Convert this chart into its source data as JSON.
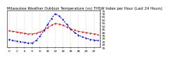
{
  "title": "Milwaukee Weather Outdoor Temperature (vs) THSW Index per Hour (Last 24 Hours)",
  "hours": [
    0,
    1,
    2,
    3,
    4,
    5,
    6,
    7,
    8,
    9,
    10,
    11,
    12,
    13,
    14,
    15,
    16,
    17,
    18,
    19,
    20,
    21,
    22,
    23
  ],
  "temp": [
    42,
    41,
    40,
    39,
    38,
    37,
    37,
    38,
    40,
    43,
    47,
    51,
    54,
    53,
    51,
    48,
    45,
    43,
    41,
    40,
    39,
    38,
    37,
    36
  ],
  "thsw": [
    28,
    26,
    25,
    24,
    23,
    22,
    22,
    26,
    33,
    42,
    52,
    62,
    70,
    66,
    60,
    52,
    45,
    39,
    35,
    32,
    30,
    28,
    27,
    26
  ],
  "temp_color": "#cc0000",
  "thsw_color": "#0000cc",
  "bg_color": "#ffffff",
  "grid_color": "#888888",
  "ylim_min": 15,
  "ylim_max": 75,
  "ytick_labels": [
    "75",
    "70",
    "65",
    "60",
    "55",
    "50",
    "45",
    "40",
    "35",
    "30",
    "25",
    "20",
    "15"
  ],
  "ytick_values": [
    75,
    70,
    65,
    60,
    55,
    50,
    45,
    40,
    35,
    30,
    25,
    20,
    15
  ],
  "title_fontsize": 3.8,
  "tick_fontsize": 3.2,
  "linewidth": 0.7
}
